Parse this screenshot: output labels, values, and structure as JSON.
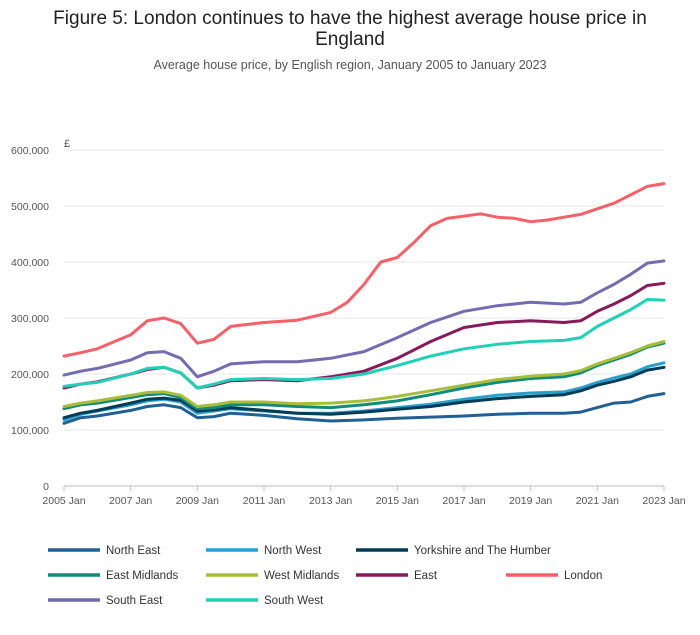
{
  "chart_data": {
    "type": "line",
    "title_lines": [
      "Figure 5: London continues to have the highest average house price in",
      "England"
    ],
    "subtitle": "Average house price, by English region, January 2005 to January 2023",
    "ylabel": "£",
    "ylim": [
      0,
      600000
    ],
    "yticks": [
      0,
      100000,
      200000,
      300000,
      400000,
      500000,
      600000
    ],
    "ytick_labels": [
      "0",
      "100,000",
      "200,000",
      "300,000",
      "400,000",
      "500,000",
      "600,000"
    ],
    "xlim": [
      2005,
      2023
    ],
    "xticks": [
      2005,
      2007,
      2009,
      2011,
      2013,
      2015,
      2017,
      2019,
      2021,
      2023
    ],
    "xtick_labels": [
      "2005 Jan",
      "2007 Jan",
      "2009 Jan",
      "2011 Jan",
      "2013 Jan",
      "2015 Jan",
      "2017 Jan",
      "2019 Jan",
      "2021 Jan",
      "2023 Jan"
    ],
    "grid": "horizontal",
    "legend_position": "bottom",
    "series": [
      {
        "name": "North East",
        "color": "#206095",
        "x": [
          2005,
          2005.5,
          2006,
          2007,
          2007.5,
          2008,
          2008.5,
          2009,
          2009.5,
          2010,
          2011,
          2012,
          2013,
          2014,
          2015,
          2016,
          2017,
          2018,
          2019,
          2020,
          2020.5,
          2021,
          2021.5,
          2022,
          2022.5,
          2023
        ],
        "y": [
          112000,
          122000,
          125000,
          135000,
          142000,
          145000,
          140000,
          122000,
          124000,
          130000,
          126000,
          120000,
          116000,
          118000,
          121000,
          123000,
          125000,
          128000,
          130000,
          130000,
          132000,
          140000,
          148000,
          150000,
          160000,
          165000
        ]
      },
      {
        "name": "North West",
        "color": "#27A0CC",
        "x": [
          2005,
          2005.5,
          2006,
          2007,
          2007.5,
          2008,
          2008.5,
          2009,
          2009.5,
          2010,
          2011,
          2012,
          2013,
          2014,
          2015,
          2016,
          2017,
          2018,
          2019,
          2020,
          2020.5,
          2021,
          2021.5,
          2022,
          2022.5,
          2023
        ],
        "y": [
          118000,
          128000,
          134000,
          145000,
          152000,
          155000,
          150000,
          130000,
          134000,
          138000,
          134000,
          130000,
          130000,
          134000,
          140000,
          146000,
          155000,
          162000,
          166000,
          168000,
          175000,
          185000,
          193000,
          200000,
          213000,
          220000
        ]
      },
      {
        "name": "Yorkshire and The Humber",
        "color": "#003C57",
        "x": [
          2005,
          2005.5,
          2006,
          2007,
          2007.5,
          2008,
          2008.5,
          2009,
          2009.5,
          2010,
          2011,
          2012,
          2013,
          2014,
          2015,
          2016,
          2017,
          2018,
          2019,
          2020,
          2020.5,
          2021,
          2021.5,
          2022,
          2022.5,
          2023
        ],
        "y": [
          122000,
          130000,
          135000,
          148000,
          155000,
          157000,
          153000,
          134000,
          136000,
          140000,
          135000,
          130000,
          128000,
          132000,
          137000,
          142000,
          150000,
          156000,
          160000,
          163000,
          170000,
          180000,
          187000,
          195000,
          207000,
          212000
        ]
      },
      {
        "name": "East Midlands",
        "color": "#118C7B",
        "x": [
          2005,
          2005.5,
          2006,
          2007,
          2007.5,
          2008,
          2008.5,
          2009,
          2009.5,
          2010,
          2011,
          2012,
          2013,
          2014,
          2015,
          2016,
          2017,
          2018,
          2019,
          2020,
          2020.5,
          2021,
          2021.5,
          2022,
          2022.5,
          2023
        ],
        "y": [
          138000,
          145000,
          148000,
          158000,
          163000,
          165000,
          158000,
          138000,
          140000,
          145000,
          145000,
          142000,
          140000,
          145000,
          152000,
          163000,
          175000,
          185000,
          192000,
          195000,
          202000,
          215000,
          225000,
          235000,
          248000,
          255000
        ]
      },
      {
        "name": "West Midlands",
        "color": "#A8BD3A",
        "x": [
          2005,
          2005.5,
          2006,
          2007,
          2007.5,
          2008,
          2008.5,
          2009,
          2009.5,
          2010,
          2011,
          2012,
          2013,
          2014,
          2015,
          2016,
          2017,
          2018,
          2019,
          2020,
          2020.5,
          2021,
          2021.5,
          2022,
          2022.5,
          2023
        ],
        "y": [
          142000,
          148000,
          152000,
          162000,
          167000,
          168000,
          162000,
          142000,
          145000,
          150000,
          150000,
          147000,
          148000,
          152000,
          160000,
          170000,
          180000,
          190000,
          196000,
          200000,
          206000,
          218000,
          228000,
          238000,
          250000,
          258000
        ]
      },
      {
        "name": "East",
        "color": "#871A5B",
        "x": [
          2005,
          2005.5,
          2006,
          2007,
          2007.5,
          2008,
          2008.5,
          2009,
          2009.5,
          2010,
          2011,
          2012,
          2013,
          2014,
          2015,
          2016,
          2017,
          2018,
          2019,
          2020,
          2020.5,
          2021,
          2021.5,
          2022,
          2022.5,
          2023
        ],
        "y": [
          175000,
          182000,
          186000,
          200000,
          208000,
          212000,
          202000,
          175000,
          180000,
          188000,
          190000,
          188000,
          195000,
          205000,
          228000,
          258000,
          283000,
          292000,
          295000,
          292000,
          295000,
          312000,
          325000,
          340000,
          358000,
          362000
        ]
      },
      {
        "name": "London",
        "color": "#F66068",
        "x": [
          2005,
          2005.5,
          2006,
          2007,
          2007.5,
          2008,
          2008.5,
          2009,
          2009.5,
          2010,
          2011,
          2012,
          2013,
          2013.5,
          2014,
          2014.5,
          2015,
          2015.5,
          2016,
          2016.5,
          2017,
          2017.5,
          2018,
          2018.5,
          2019,
          2019.5,
          2020,
          2020.5,
          2021,
          2021.5,
          2022,
          2022.5,
          2023
        ],
        "y": [
          232000,
          238000,
          245000,
          270000,
          295000,
          300000,
          290000,
          255000,
          262000,
          285000,
          292000,
          296000,
          310000,
          328000,
          360000,
          400000,
          408000,
          435000,
          465000,
          478000,
          482000,
          486000,
          480000,
          478000,
          472000,
          475000,
          480000,
          485000,
          495000,
          505000,
          520000,
          535000,
          540000
        ]
      },
      {
        "name": "South East",
        "color": "#746CB1",
        "x": [
          2005,
          2005.5,
          2006,
          2007,
          2007.5,
          2008,
          2008.5,
          2009,
          2009.5,
          2010,
          2011,
          2012,
          2013,
          2014,
          2015,
          2016,
          2017,
          2018,
          2019,
          2020,
          2020.5,
          2021,
          2021.5,
          2022,
          2022.5,
          2023
        ],
        "y": [
          198000,
          205000,
          210000,
          225000,
          238000,
          240000,
          228000,
          195000,
          205000,
          218000,
          222000,
          222000,
          228000,
          240000,
          265000,
          292000,
          312000,
          322000,
          328000,
          325000,
          328000,
          345000,
          360000,
          378000,
          398000,
          402000
        ]
      },
      {
        "name": "South West",
        "color": "#22D0B6",
        "x": [
          2005,
          2005.5,
          2006,
          2007,
          2007.5,
          2008,
          2008.5,
          2009,
          2009.5,
          2010,
          2011,
          2012,
          2013,
          2014,
          2015,
          2016,
          2017,
          2018,
          2019,
          2020,
          2020.5,
          2021,
          2021.5,
          2022,
          2022.5,
          2023
        ],
        "y": [
          178000,
          182000,
          185000,
          200000,
          210000,
          212000,
          202000,
          175000,
          182000,
          190000,
          192000,
          190000,
          192000,
          200000,
          215000,
          232000,
          245000,
          253000,
          258000,
          260000,
          265000,
          285000,
          300000,
          315000,
          333000,
          332000
        ]
      }
    ]
  }
}
